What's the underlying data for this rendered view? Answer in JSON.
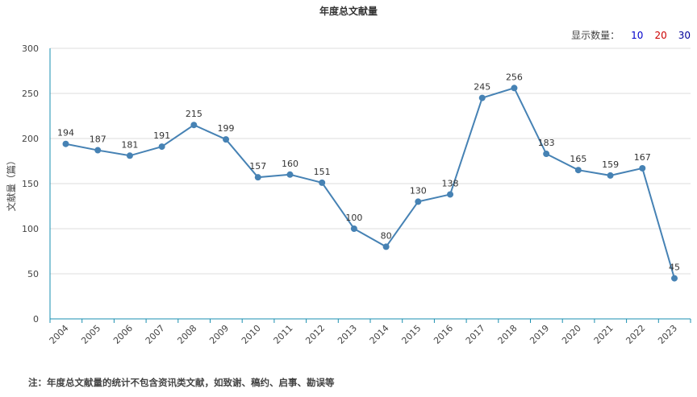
{
  "chart_data": {
    "type": "line",
    "title": "年度总文献量",
    "ylabel": "文献量（篇）",
    "xlabel": "",
    "ylim": [
      0,
      300
    ],
    "yticks": [
      0,
      50,
      100,
      150,
      200,
      250,
      300
    ],
    "grid": true,
    "categories": [
      "2004",
      "2005",
      "2006",
      "2007",
      "2008",
      "2009",
      "2010",
      "2011",
      "2012",
      "2013",
      "2014",
      "2015",
      "2016",
      "2017",
      "2018",
      "2019",
      "2020",
      "2021",
      "2022",
      "2023"
    ],
    "series": [
      {
        "values": [
          194,
          187,
          181,
          191,
          215,
          199,
          157,
          160,
          151,
          100,
          80,
          130,
          138,
          245,
          256,
          183,
          165,
          159,
          167,
          45
        ]
      }
    ]
  },
  "colors": {
    "line": "#4682b4",
    "opt10": "#0000cc",
    "opt20": "#cc0000",
    "opt30": "#000099",
    "axis": "#1a8fb0",
    "grid": "#dddddd"
  },
  "limit_bar": {
    "label": "显示数量：",
    "options": [
      "10",
      "20",
      "30"
    ]
  },
  "footnote": "注：年度总文献量的统计不包含资讯类文献，如致谢、稿约、启事、勘误等"
}
